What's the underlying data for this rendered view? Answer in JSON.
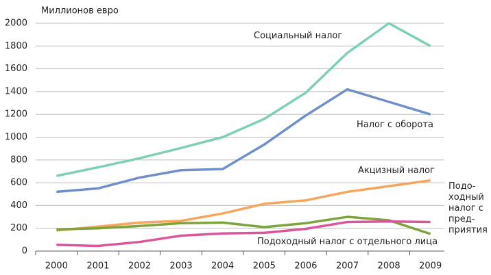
{
  "chart_data": {
    "type": "line",
    "ylabel": "Миллионов евро",
    "categories": [
      "2000",
      "2001",
      "2002",
      "2003",
      "2004",
      "2005",
      "2006",
      "2007",
      "2008",
      "2009"
    ],
    "ylim": [
      0,
      2000
    ],
    "yticks": [
      0,
      200,
      400,
      600,
      800,
      1000,
      1200,
      1400,
      1600,
      1800,
      2000
    ],
    "grid": true,
    "series": [
      {
        "name": "Социальный налог",
        "color": "#7fcfb5",
        "values": [
          660,
          735,
          815,
          905,
          1000,
          1160,
          1390,
          1740,
          2000,
          1800
        ]
      },
      {
        "name": "Налог с оборота",
        "color": "#6f8fca",
        "values": [
          520,
          550,
          645,
          710,
          720,
          935,
          1190,
          1420,
          1310,
          1200
        ]
      },
      {
        "name": "Акцизный налог",
        "color": "#f5a55c",
        "values": [
          180,
          215,
          250,
          265,
          330,
          415,
          445,
          520,
          570,
          620
        ]
      },
      {
        "name": "Подо-ходный налог с пред-приятия",
        "color": "#7ea33d",
        "values": [
          190,
          200,
          220,
          245,
          250,
          210,
          245,
          300,
          270,
          150
        ]
      },
      {
        "name": "Подоходный налог с отдельного лица",
        "color": "#d9559c",
        "values": [
          55,
          45,
          80,
          135,
          155,
          160,
          195,
          255,
          260,
          255
        ]
      }
    ]
  }
}
